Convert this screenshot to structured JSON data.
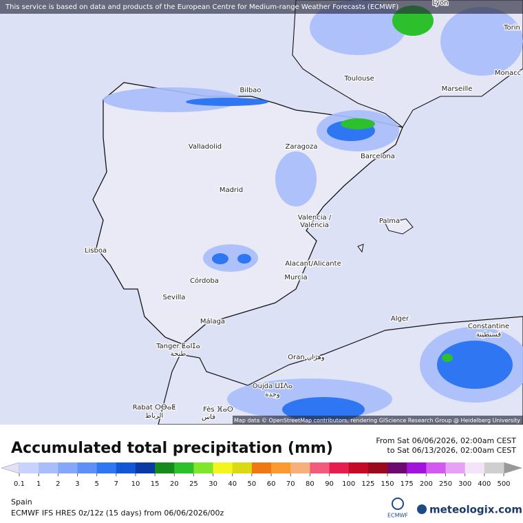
{
  "notice": "This service is based on data and products of the European Centre for Medium-range Weather Forecasts (ECMWF)",
  "attribution": "Map data © OpenStreetMap contributors, rendering GIScience Research Group @ Heidelberg University",
  "cities": [
    "Lyon",
    "Torin",
    "Monacc",
    "Bilbao",
    "Toulouse",
    "Marseille",
    "Valladolid",
    "Zaragoza",
    "Barcelona",
    "Madrid",
    "Valencia /",
    "València",
    "Palma",
    "Lisboa",
    "Alacant/Alicante",
    "Murcia",
    "Córdoba",
    "Sevilla",
    "Málaga",
    "Alger",
    "Constantine",
    "قسنطينة",
    "Tanger ⵟⴰⵏⵊⴰ",
    "طنجة",
    "Oran وهران",
    "Oujda ⵡⵊⴷⴰ",
    "وجدة",
    "Rabat ⵔⴱⴰⵟ",
    "الرباط",
    "Fès ⴼⴰⵙ",
    "فاس"
  ],
  "title": "Accumulated total precipitation (mm)",
  "period": {
    "from": "From Sat 06/06/2026, 02:00am CEST",
    "to": "to Sat 06/13/2026, 02:00am CEST"
  },
  "region": "Spain",
  "model": "ECMWF IFS HRES 0z/12z (15 days) from 06/06/2026/00z",
  "logos": {
    "ecmwf": "ECMWF",
    "brand": "meteologix.com"
  },
  "legend": {
    "values": [
      0.1,
      1,
      2,
      3,
      5,
      7,
      10,
      15,
      20,
      25,
      30,
      40,
      50,
      60,
      70,
      80,
      90,
      100,
      125,
      150,
      175,
      200,
      250,
      300,
      400,
      500
    ],
    "colors": [
      "#c9d2fa",
      "#a9bdfb",
      "#86a6f8",
      "#5e8ff6",
      "#2f77f2",
      "#1457d6",
      "#0c3aa4",
      "#168a1a",
      "#2cc12c",
      "#80e62c",
      "#f5f51e",
      "#dada12",
      "#f07814",
      "#fa9a30",
      "#f7b07c",
      "#f25a7e",
      "#e61e50",
      "#c40a26",
      "#9a0a1c",
      "#6c0a70",
      "#a014dc",
      "#d25af0",
      "#e6a0f5",
      "#f3e4fa",
      "#cfcfcf"
    ]
  }
}
